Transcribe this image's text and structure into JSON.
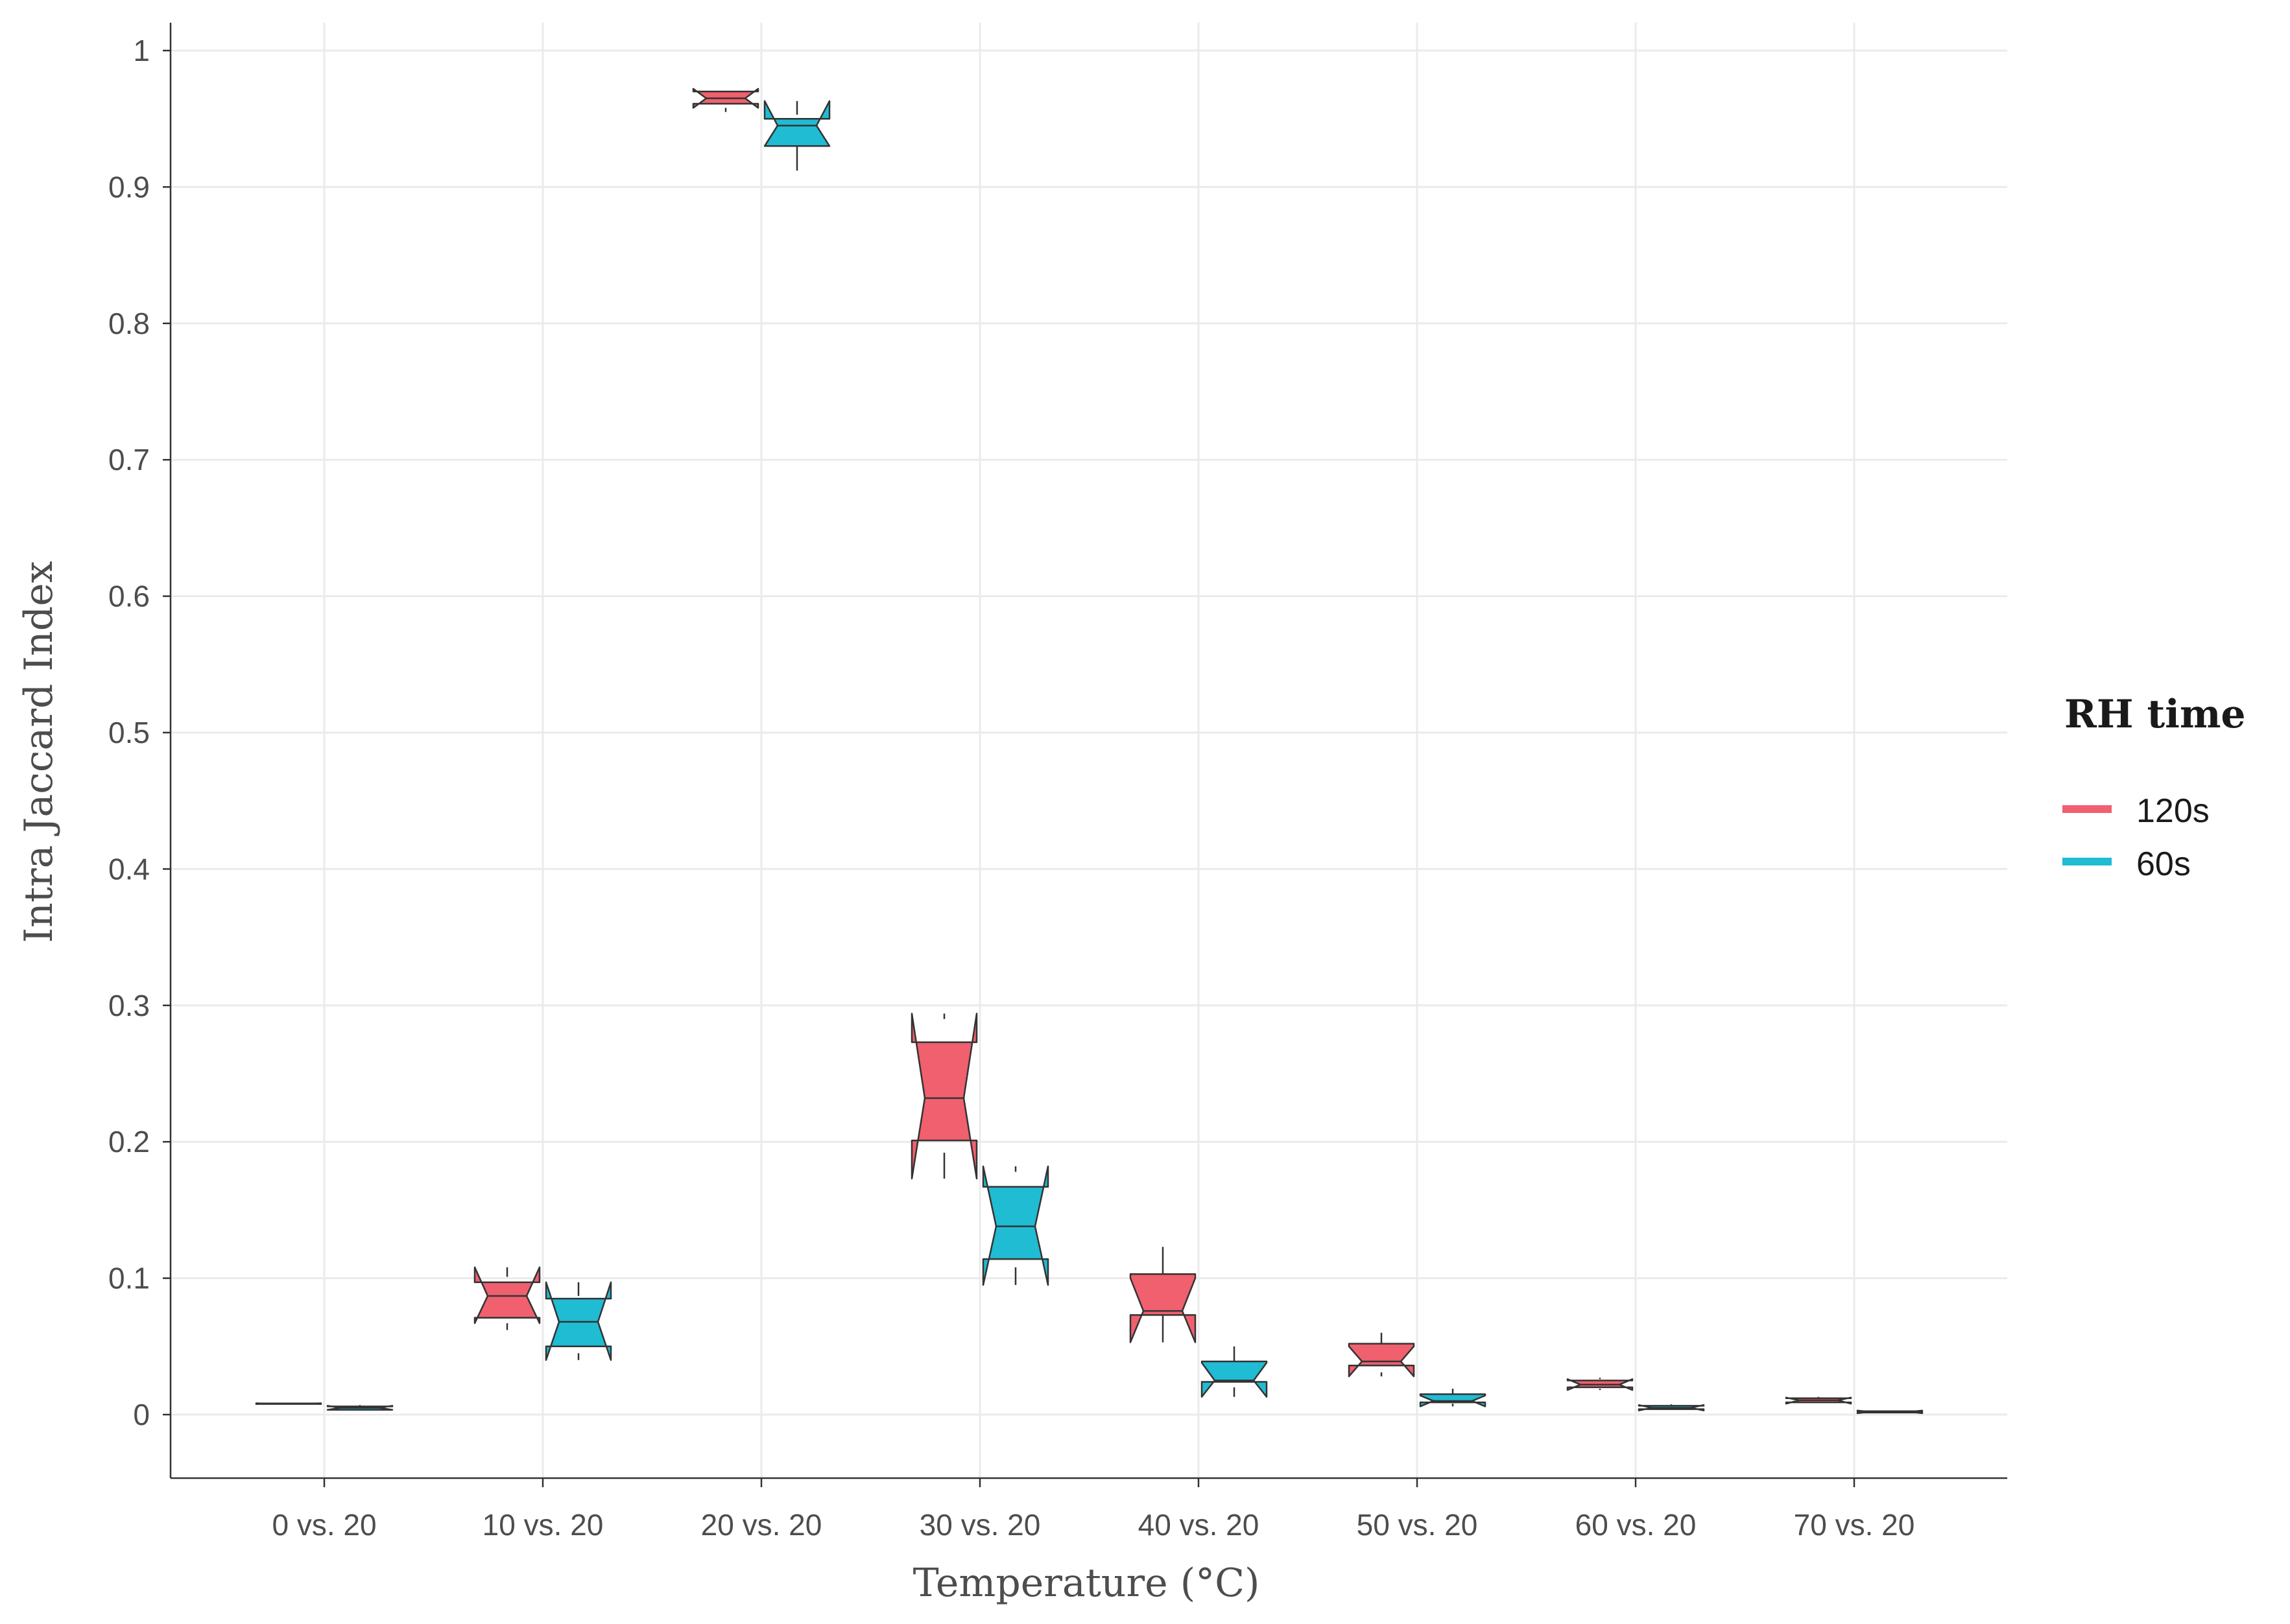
{
  "chart_data": {
    "type": "boxplot",
    "notched": true,
    "xlabel": "Temperature (°C)",
    "ylabel": "Intra Jaccard Index",
    "ylim": [
      -0.047,
      1.02
    ],
    "yticks": [
      "0",
      "0.1",
      "0.2",
      "0.3",
      "0.4",
      "0.5",
      "0.6",
      "0.7",
      "0.8",
      "0.9",
      "1"
    ],
    "grid": true,
    "categories": [
      "0 vs. 20",
      "10 vs. 20",
      "20 vs. 20",
      "30 vs. 20",
      "40 vs. 20",
      "50 vs. 20",
      "60 vs. 20",
      "70 vs. 20"
    ],
    "legend": {
      "title": "RH time",
      "position": "right",
      "entries": [
        "120s",
        "60s"
      ]
    },
    "series": [
      {
        "name": "120s",
        "color": "#f0606e",
        "boxes": [
          {
            "min": 0.0075,
            "q1": 0.0078,
            "median": 0.008,
            "q3": 0.0082,
            "max": 0.0085,
            "notch_low": 0.0077,
            "notch_high": 0.0083
          },
          {
            "min": 0.062,
            "q1": 0.071,
            "median": 0.087,
            "q3": 0.097,
            "max": 0.101,
            "notch_low": 0.067,
            "notch_high": 0.108
          },
          {
            "min": 0.955,
            "q1": 0.961,
            "median": 0.965,
            "q3": 0.97,
            "max": 0.972,
            "notch_low": 0.958,
            "notch_high": 0.972
          },
          {
            "min": 0.192,
            "q1": 0.201,
            "median": 0.232,
            "q3": 0.273,
            "max": 0.29,
            "notch_low": 0.173,
            "notch_high": 0.294
          },
          {
            "min": 0.073,
            "q1": 0.073,
            "median": 0.076,
            "q3": 0.103,
            "max": 0.123,
            "notch_low": 0.053,
            "notch_high": 0.1
          },
          {
            "min": 0.031,
            "q1": 0.036,
            "median": 0.039,
            "q3": 0.052,
            "max": 0.06,
            "notch_low": 0.028,
            "notch_high": 0.05
          },
          {
            "min": 0.019,
            "q1": 0.02,
            "median": 0.022,
            "q3": 0.025,
            "max": 0.027,
            "notch_low": 0.018,
            "notch_high": 0.026
          },
          {
            "min": 0.008,
            "q1": 0.009,
            "median": 0.0105,
            "q3": 0.012,
            "max": 0.013,
            "notch_low": 0.008,
            "notch_high": 0.0125
          }
        ]
      },
      {
        "name": "60s",
        "color": "#1fbcd3",
        "boxes": [
          {
            "min": 0.003,
            "q1": 0.0035,
            "median": 0.005,
            "q3": 0.006,
            "max": 0.007,
            "notch_low": 0.0035,
            "notch_high": 0.0065
          },
          {
            "min": 0.045,
            "q1": 0.05,
            "median": 0.068,
            "q3": 0.085,
            "max": 0.087,
            "notch_low": 0.04,
            "notch_high": 0.097
          },
          {
            "min": 0.912,
            "q1": 0.93,
            "median": 0.945,
            "q3": 0.95,
            "max": 0.953,
            "notch_low": 0.93,
            "notch_high": 0.963
          },
          {
            "min": 0.108,
            "q1": 0.114,
            "median": 0.138,
            "q3": 0.167,
            "max": 0.178,
            "notch_low": 0.095,
            "notch_high": 0.182
          },
          {
            "min": 0.02,
            "q1": 0.024,
            "median": 0.025,
            "q3": 0.039,
            "max": 0.05,
            "notch_low": 0.013,
            "notch_high": 0.038
          },
          {
            "min": 0.008,
            "q1": 0.009,
            "median": 0.01,
            "q3": 0.015,
            "max": 0.019,
            "notch_low": 0.006,
            "notch_high": 0.014
          },
          {
            "min": 0.003,
            "q1": 0.004,
            "median": 0.005,
            "q3": 0.0065,
            "max": 0.0075,
            "notch_low": 0.003,
            "notch_high": 0.007
          },
          {
            "min": 0.001,
            "q1": 0.0015,
            "median": 0.002,
            "q3": 0.0025,
            "max": 0.003,
            "notch_low": 0.001,
            "notch_high": 0.003
          }
        ]
      }
    ]
  }
}
